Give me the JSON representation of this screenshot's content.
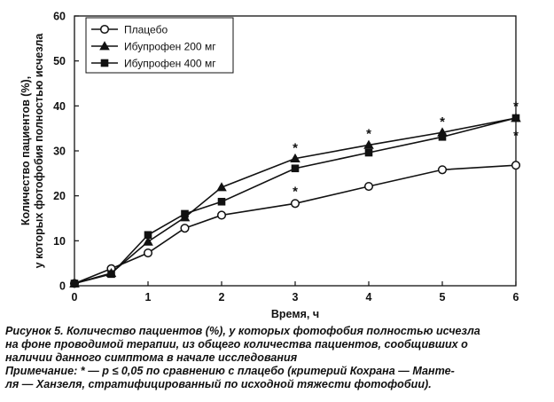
{
  "chart_data": {
    "type": "line",
    "x": [
      0,
      0.5,
      1,
      1.5,
      2,
      3,
      4,
      5,
      6
    ],
    "series": [
      {
        "name": "Плацебо",
        "marker": "circle-open",
        "values": [
          0.5,
          3.8,
          7.3,
          12.8,
          15.7,
          18.3,
          22.1,
          25.8,
          26.8
        ]
      },
      {
        "name": "Ибупрофен 200 мг",
        "marker": "triangle",
        "values": [
          0.5,
          2.8,
          9.8,
          15.2,
          21.9,
          28.3,
          31.3,
          34.1,
          37.3
        ]
      },
      {
        "name": "Ибупрофен 400 мг",
        "marker": "square",
        "values": [
          0.5,
          2.6,
          11.3,
          16.0,
          18.7,
          26.1,
          29.6,
          33.1,
          37.3
        ]
      }
    ],
    "xlabel": "Время, ч",
    "ylabel_lines": [
      "Количество пациентов (%),",
      "у которых фотофобия полностью исчезла"
    ],
    "xlim": [
      0,
      6
    ],
    "ylim": [
      0,
      60
    ],
    "xticks": [
      0,
      1,
      2,
      3,
      4,
      5,
      6
    ],
    "yticks": [
      0,
      10,
      20,
      30,
      40,
      50,
      60
    ],
    "grid": false,
    "legend_position": "top-left",
    "annotations": [
      {
        "text": "*",
        "x": 3,
        "y": 31.3
      },
      {
        "text": "*",
        "x": 3,
        "y": 21.6
      },
      {
        "text": "*",
        "x": 4,
        "y": 34.4
      },
      {
        "text": "*",
        "x": 5,
        "y": 37.1
      },
      {
        "text": "*",
        "x": 6,
        "y": 40.6
      },
      {
        "text": "*",
        "x": 6,
        "y": 34.0
      }
    ]
  },
  "caption": {
    "lines": [
      "Рисунок 5. Количество пациентов (%), у которых фотофобия полностью исчезла",
      "на фоне проводимой терапии, из общего количества пациентов, сообщивших о",
      "наличии данного симптома в начале исследования",
      "Примечание: * — p ≤ 0,05 по сравнению с плацебо (критерий Кохрана — Манте-",
      "ля — Ханзеля, стратифицированный по исходной тяжести фотофобии)."
    ]
  }
}
